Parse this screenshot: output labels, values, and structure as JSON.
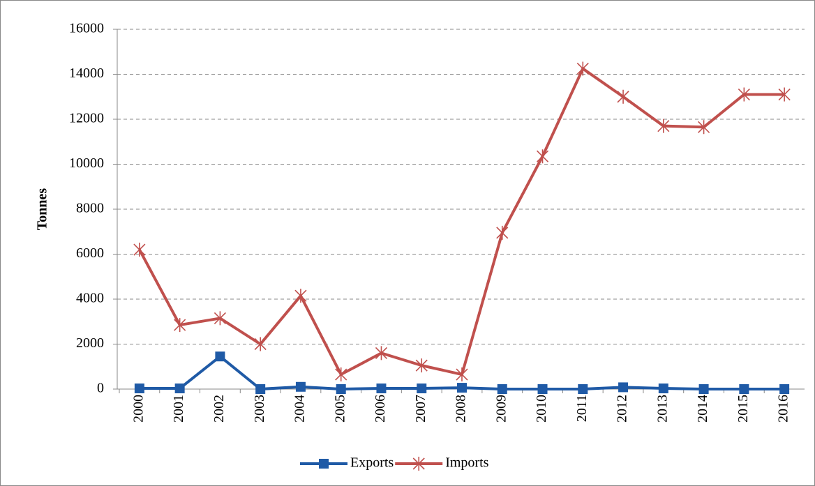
{
  "chart_data": {
    "type": "line",
    "y_label": "Tonnes",
    "categories": [
      "2000",
      "2001",
      "2002",
      "2003",
      "2004",
      "2005",
      "2006",
      "2007",
      "2008",
      "2009",
      "2010",
      "2011",
      "2012",
      "2013",
      "2014",
      "2015",
      "2016"
    ],
    "series": [
      {
        "name": "Exports",
        "color": "#1f5aa6",
        "marker": "square",
        "values": [
          30,
          30,
          1450,
          0,
          100,
          0,
          30,
          30,
          60,
          0,
          0,
          0,
          80,
          30,
          0,
          0,
          0
        ]
      },
      {
        "name": "Imports",
        "color": "#c0504d",
        "marker": "star",
        "values": [
          6200,
          2850,
          3150,
          2000,
          4150,
          650,
          1600,
          1050,
          650,
          6950,
          10350,
          14250,
          13000,
          11700,
          11650,
          13100,
          13100
        ]
      }
    ],
    "ylim": [
      0,
      16000
    ],
    "yticks": [
      0,
      2000,
      4000,
      6000,
      8000,
      10000,
      12000,
      14000,
      16000
    ],
    "grid": true,
    "legend": "bottom"
  }
}
